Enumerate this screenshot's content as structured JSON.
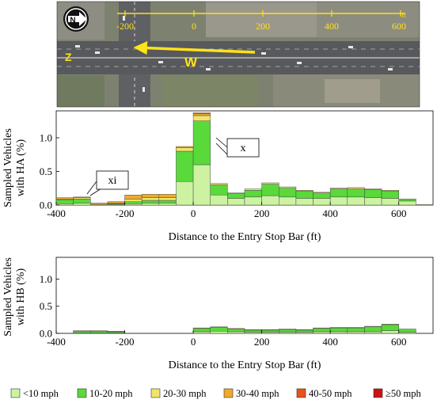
{
  "aerial": {
    "compass_label": "N",
    "direction_label_w": "W",
    "direction_label_z": "Z",
    "scale_ticks": [
      "-200",
      "0",
      "200",
      "400",
      "600"
    ],
    "scale_unit": "ft"
  },
  "colors": {
    "lt10": "#ccf2a2",
    "10_20": "#59d93a",
    "20_30": "#f2e46a",
    "30_40": "#f0aa2a",
    "40_50": "#e8541a",
    "ge50": "#cc1212",
    "arrow": "#ffe21a"
  },
  "legend": [
    {
      "label": "<10 mph",
      "key": "lt10"
    },
    {
      "label": "10-20 mph",
      "key": "10_20"
    },
    {
      "label": "20-30 mph",
      "key": "20_30"
    },
    {
      "label": "30-40 mph",
      "key": "30_40"
    },
    {
      "label": "40-50 mph",
      "key": "40_50"
    },
    {
      "label": "≥50 mph",
      "key": "ge50"
    }
  ],
  "chart_data": [
    {
      "type": "bar",
      "stacked": true,
      "ylabel_line1": "Sampled Vehicles",
      "ylabel_line2": "with HA (%)",
      "xlabel": "Distance to the Entry Stop Bar (ft)",
      "xlim": [
        -400,
        700
      ],
      "ylim": [
        0,
        1.4
      ],
      "xticks": [
        -400,
        -200,
        0,
        200,
        400,
        600
      ],
      "yticks": [
        0.0,
        0.5,
        1.0
      ],
      "bin_width": 50,
      "x": [
        -375,
        -325,
        -275,
        -225,
        -175,
        -125,
        -75,
        -25,
        25,
        75,
        125,
        175,
        225,
        275,
        325,
        375,
        425,
        475,
        525,
        575,
        625,
        675
      ],
      "series": [
        {
          "key": "lt10",
          "values": [
            0.02,
            0.03,
            0,
            0.01,
            0.02,
            0.03,
            0.03,
            0.35,
            0.6,
            0.15,
            0.1,
            0.12,
            0.14,
            0.12,
            0.1,
            0.1,
            0.12,
            0.12,
            0.11,
            0.1,
            0.06,
            0.01
          ]
        },
        {
          "key": "10_20",
          "values": [
            0.06,
            0.06,
            0,
            0.01,
            0.03,
            0.04,
            0.04,
            0.45,
            0.65,
            0.15,
            0.07,
            0.1,
            0.17,
            0.13,
            0.11,
            0.08,
            0.12,
            0.12,
            0.12,
            0.11,
            0.03,
            0
          ]
        },
        {
          "key": "20_30",
          "values": [
            0.01,
            0.02,
            0.01,
            0.01,
            0.04,
            0.04,
            0.04,
            0.05,
            0.08,
            0.02,
            0.01,
            0.02,
            0.02,
            0.02,
            0.01,
            0.01,
            0.01,
            0.02,
            0.01,
            0.01,
            0,
            0
          ]
        },
        {
          "key": "30_40",
          "values": [
            0.02,
            0.01,
            0.02,
            0.02,
            0.06,
            0.05,
            0.05,
            0.02,
            0.03,
            0,
            0,
            0,
            0,
            0,
            0,
            0,
            0,
            0,
            0,
            0,
            0,
            0
          ]
        },
        {
          "key": "40_50",
          "values": [
            0,
            0,
            0,
            0,
            0,
            0,
            0,
            0,
            0.01,
            0,
            0,
            0,
            0,
            0,
            0,
            0,
            0,
            0,
            0,
            0,
            0,
            0
          ]
        },
        {
          "key": "ge50",
          "values": [
            0,
            0,
            0,
            0,
            0,
            0,
            0,
            0,
            0,
            0,
            0,
            0,
            0,
            0,
            0,
            0,
            0,
            0,
            0,
            0,
            0,
            0
          ]
        }
      ],
      "annotations": [
        {
          "text": "x",
          "points_to_x": 25
        },
        {
          "text": "xi",
          "points_to_x": -325
        }
      ]
    },
    {
      "type": "bar",
      "stacked": true,
      "ylabel_line1": "Sampled Vehicles",
      "ylabel_line2": "with HB (%)",
      "xlabel": "Distance to the Entry Stop Bar (ft)",
      "xlim": [
        -400,
        700
      ],
      "ylim": [
        0,
        1.4
      ],
      "xticks": [
        -400,
        -200,
        0,
        200,
        400,
        600
      ],
      "yticks": [
        0.0,
        0.5,
        1.0
      ],
      "bin_width": 50,
      "x": [
        -375,
        -325,
        -275,
        -225,
        -175,
        -125,
        -75,
        -25,
        25,
        75,
        125,
        175,
        225,
        275,
        325,
        375,
        425,
        475,
        525,
        575,
        625,
        675
      ],
      "series": [
        {
          "key": "lt10",
          "values": [
            0,
            0.01,
            0.01,
            0.01,
            0,
            0,
            0,
            0,
            0.03,
            0.04,
            0.03,
            0.02,
            0.02,
            0.02,
            0.02,
            0.03,
            0.03,
            0.03,
            0.03,
            0.05,
            0.02,
            0
          ]
        },
        {
          "key": "10_20",
          "values": [
            0,
            0.03,
            0.03,
            0.02,
            0,
            0,
            0,
            0,
            0.06,
            0.07,
            0.05,
            0.04,
            0.04,
            0.05,
            0.04,
            0.06,
            0.07,
            0.07,
            0.09,
            0.11,
            0.06,
            0
          ]
        },
        {
          "key": "20_30",
          "values": [
            0,
            0.01,
            0.01,
            0.01,
            0,
            0,
            0,
            0,
            0.01,
            0.01,
            0.01,
            0.01,
            0.01,
            0.01,
            0.01,
            0.01,
            0.01,
            0.01,
            0.01,
            0.01,
            0,
            0
          ]
        },
        {
          "key": "30_40",
          "values": [
            0,
            0,
            0,
            0,
            0,
            0,
            0,
            0,
            0,
            0,
            0,
            0,
            0,
            0,
            0,
            0,
            0,
            0,
            0,
            0,
            0,
            0
          ]
        },
        {
          "key": "40_50",
          "values": [
            0,
            0,
            0,
            0,
            0,
            0,
            0,
            0,
            0,
            0,
            0,
            0,
            0,
            0,
            0,
            0,
            0,
            0,
            0,
            0,
            0,
            0
          ]
        },
        {
          "key": "ge50",
          "values": [
            0,
            0,
            0,
            0,
            0,
            0,
            0,
            0,
            0,
            0,
            0,
            0,
            0,
            0,
            0,
            0,
            0,
            0,
            0,
            0,
            0,
            0
          ]
        }
      ]
    }
  ]
}
